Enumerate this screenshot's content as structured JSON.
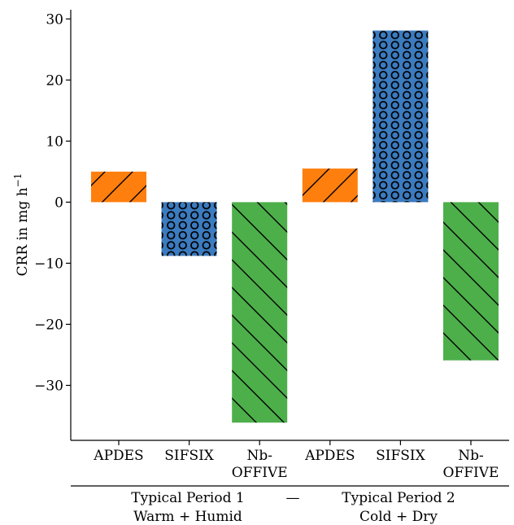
{
  "chart_data": {
    "type": "bar",
    "ylabel": "CRR in mg h",
    "ylabel_sup": "−1",
    "ylim": [
      -39,
      31.5
    ],
    "yticks": [
      30,
      20,
      10,
      0,
      -10,
      -20,
      -30
    ],
    "ytick_labels": [
      "30",
      "20",
      "10",
      "0",
      "−10",
      "−20",
      "−30"
    ],
    "grid": false,
    "categories": [
      [
        "APDES"
      ],
      [
        "SIFSIX"
      ],
      [
        "Nb-",
        "OFFIVE"
      ],
      [
        "APDES"
      ],
      [
        "SIFSIX"
      ],
      [
        "Nb-",
        "OFFIVE"
      ]
    ],
    "groups": [
      {
        "line1": "Typical Period 1",
        "line2": "Warm + Humid"
      },
      {
        "line1": "Typical Period 2",
        "line2": "Cold + Dry"
      }
    ],
    "group_separator": "—",
    "bars": [
      {
        "material": "APDES",
        "period": "Typical Period 1",
        "value": 5.0,
        "color": "#ff7f0e",
        "hatch": "forward-diagonal"
      },
      {
        "material": "SIFSIX",
        "period": "Typical Period 1",
        "value": -8.8,
        "color": "#3b7bbf",
        "hatch": "circles"
      },
      {
        "material": "Nb-OFFIVE",
        "period": "Typical Period 1",
        "value": -36.1,
        "color": "#4daf4a",
        "hatch": "back-diagonal"
      },
      {
        "material": "APDES",
        "period": "Typical Period 2",
        "value": 5.5,
        "color": "#ff7f0e",
        "hatch": "forward-diagonal"
      },
      {
        "material": "SIFSIX",
        "period": "Typical Period 2",
        "value": 28.1,
        "color": "#3b7bbf",
        "hatch": "circles"
      },
      {
        "material": "Nb-OFFIVE",
        "period": "Typical Period 2",
        "value": -25.9,
        "color": "#4daf4a",
        "hatch": "back-diagonal"
      }
    ]
  }
}
